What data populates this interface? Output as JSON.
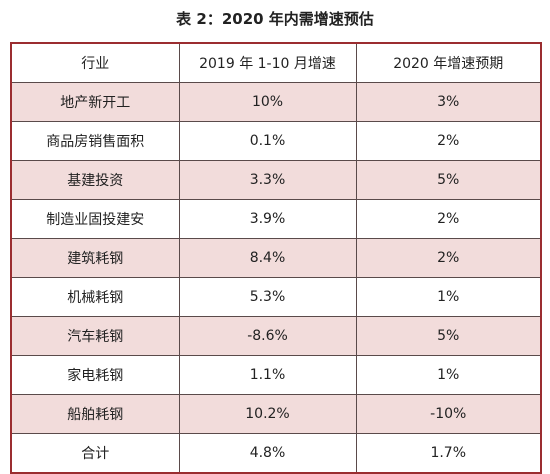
{
  "title": "表 2：2020 年内需增速预估",
  "table": {
    "header": [
      "行业",
      "2019 年 1-10 月增速",
      "2020 年增速预期"
    ],
    "rows": [
      [
        "地产新开工",
        "10%",
        "3%"
      ],
      [
        "商品房销售面积",
        "0.1%",
        "2%"
      ],
      [
        "基建投资",
        "3.3%",
        "5%"
      ],
      [
        "制造业固投建安",
        "3.9%",
        "2%"
      ],
      [
        "建筑耗钢",
        "8.4%",
        "2%"
      ],
      [
        "机械耗钢",
        "5.3%",
        "1%"
      ],
      [
        "汽车耗钢",
        "-8.6%",
        "5%"
      ],
      [
        "家电耗钢",
        "1.1%",
        "1%"
      ],
      [
        "船舶耗钢",
        "10.2%",
        "-10%"
      ],
      [
        "合计",
        "4.8%",
        "1.7%"
      ]
    ]
  }
}
